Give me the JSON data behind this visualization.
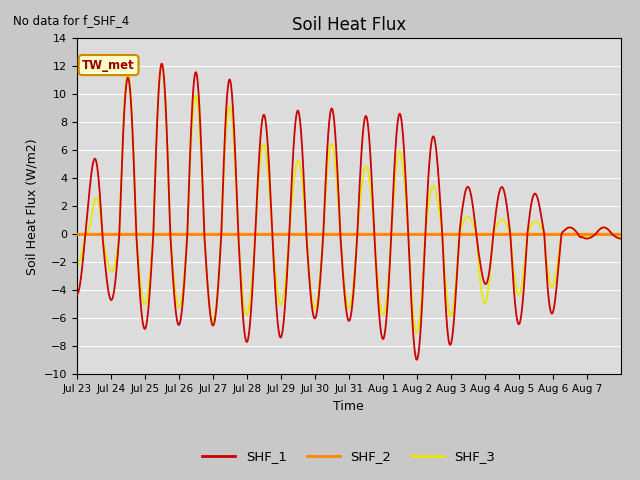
{
  "title": "Soil Heat Flux",
  "subtitle": "No data for f_SHF_4",
  "xlabel": "Time",
  "ylabel": "Soil Heat Flux (W/m2)",
  "ylim": [
    -10,
    14
  ],
  "yticks": [
    -10,
    -8,
    -6,
    -4,
    -2,
    0,
    2,
    4,
    6,
    8,
    10,
    12,
    14
  ],
  "bg_color": "#dcdcdc",
  "fig_color": "#c8c8c8",
  "shf1_color": "#cc0000",
  "shf2_color": "#ff8800",
  "shf3_color": "#e8e800",
  "annotation_box": {
    "text": "TW_met",
    "facecolor": "#ffffcc",
    "edgecolor": "#cc8800"
  },
  "xticklabels": [
    "Jul 23",
    "Jul 24",
    "Jul 25",
    "Jul 26",
    "Jul 27",
    "Jul 28",
    "Jul 29",
    "Jul 30",
    "Jul 31",
    "Aug 1",
    "Aug 2",
    "Aug 3",
    "Aug 4",
    "Aug 5",
    "Aug 6",
    "Aug 7"
  ],
  "n_days": 16,
  "shf1_peaks": [
    4.3,
    11.0,
    7.0,
    12.3,
    11.6,
    11.5,
    8.5,
    7.6,
    8.8,
    9.1,
    8.4,
    8.8,
    7.6,
    3.4,
    0.5,
    3.4,
    0.5
  ],
  "shf1_troughs": [
    -4.3,
    -6.8,
    -5.2,
    -6.5,
    -6.3,
    -7.7,
    -5.3,
    -7.6,
    -6.0,
    -6.0,
    -7.2,
    -9.0,
    -8.7,
    -0.8,
    -6.4,
    -0.3
  ],
  "shf3_peaks": [
    0,
    11.5,
    6.7,
    12.5,
    10.0,
    9.6,
    4.5,
    6.7,
    5.0,
    6.8,
    4.6,
    6.3,
    3.8,
    1.3,
    1.1,
    1.0,
    0.5
  ],
  "shf3_troughs": [
    -2.2,
    -5.0,
    -4.8,
    -5.0,
    -6.3,
    -5.9,
    -3.3,
    -5.0,
    -5.3,
    -5.2,
    -5.5,
    -7.2,
    -6.0,
    -5.0,
    -4.3,
    -0.2
  ]
}
